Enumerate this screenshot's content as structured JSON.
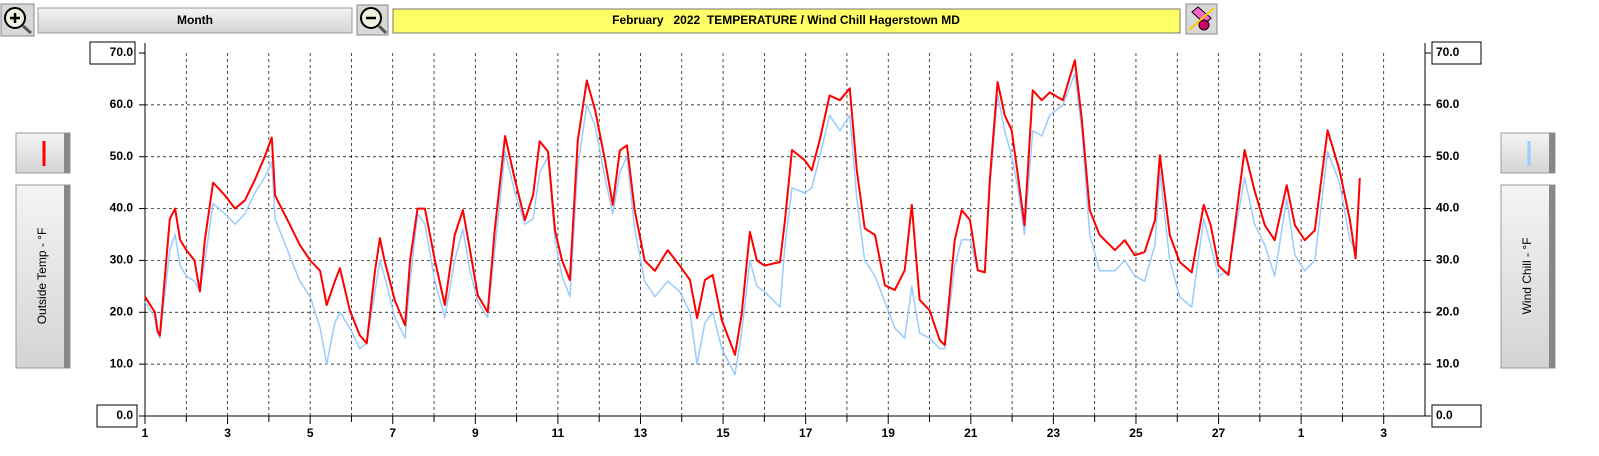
{
  "toolbar": {
    "period_button": "Month"
  },
  "chart_data": {
    "type": "line",
    "title": "February   2022  TEMPERATURE / Wind Chill Hagerstown MD",
    "y_label": "Outside Temp - °F",
    "y2_label": "Wind Chill - °F",
    "x": [
      1.0,
      1.24,
      1.3,
      1.36,
      1.6,
      1.73,
      1.85,
      2.0,
      2.2,
      2.33,
      2.45,
      2.65,
      2.94,
      3.18,
      3.42,
      3.66,
      3.9,
      4.07,
      4.15,
      4.5,
      4.75,
      5.0,
      5.24,
      5.4,
      5.6,
      5.72,
      5.96,
      6.2,
      6.37,
      6.57,
      6.69,
      6.8,
      7.05,
      7.3,
      7.42,
      7.6,
      7.78,
      8.02,
      8.26,
      8.5,
      8.7,
      8.87,
      9.06,
      9.3,
      9.47,
      9.72,
      9.96,
      10.2,
      10.4,
      10.56,
      10.76,
      10.93,
      11.1,
      11.29,
      11.48,
      11.7,
      11.9,
      12.14,
      12.33,
      12.5,
      12.67,
      12.86,
      13.1,
      13.35,
      13.66,
      13.95,
      14.2,
      14.37,
      14.56,
      14.75,
      14.97,
      15.29,
      15.45,
      15.65,
      15.82,
      16.0,
      16.38,
      16.5,
      16.67,
      16.98,
      17.15,
      17.34,
      17.58,
      17.83,
      18.07,
      18.24,
      18.43,
      18.68,
      18.92,
      19.16,
      19.4,
      19.57,
      19.76,
      20.0,
      20.25,
      20.37,
      20.61,
      20.78,
      20.98,
      21.17,
      21.34,
      21.46,
      21.65,
      21.82,
      21.99,
      22.14,
      22.3,
      22.5,
      22.72,
      22.91,
      23.23,
      23.52,
      23.69,
      23.88,
      24.12,
      24.49,
      24.73,
      24.97,
      25.21,
      25.46,
      25.58,
      25.82,
      26.06,
      26.35,
      26.64,
      26.81,
      27.0,
      27.24,
      27.63,
      27.87,
      28.12,
      28.36,
      28.65,
      28.85,
      29.09,
      29.33,
      29.64,
      29.93,
      30.18,
      30.32,
      30.42
    ],
    "series": [
      {
        "name": "Outside Temp - °F",
        "color": "#ff0000",
        "values": [
          23,
          20,
          16.5,
          15.5,
          38,
          40,
          34,
          32,
          30,
          24,
          34,
          45,
          42.5,
          40,
          41.6,
          45.5,
          50,
          53.7,
          42.5,
          37,
          33,
          30,
          28,
          21.4,
          26,
          28.5,
          20.4,
          15.6,
          14,
          28,
          34.3,
          30,
          22.3,
          17.5,
          30,
          40,
          40,
          30,
          21.4,
          34.9,
          39.7,
          32,
          23.3,
          20,
          35.8,
          54,
          45.5,
          37.8,
          42.6,
          53,
          51,
          35.8,
          30,
          26.2,
          53,
          64.7,
          59,
          49.3,
          40.7,
          51.2,
          52.2,
          39.7,
          30,
          28,
          32,
          29,
          26.2,
          18.9,
          26.2,
          27.2,
          18.5,
          11.8,
          19.5,
          35.5,
          30,
          29,
          29.7,
          37.8,
          51.3,
          49.3,
          47.4,
          53.2,
          61.8,
          60.9,
          63.2,
          47.4,
          36.2,
          34.9,
          25.2,
          24.3,
          28.1,
          40.7,
          22.4,
          20.4,
          14.6,
          13.7,
          33.9,
          39.7,
          37.8,
          28.1,
          27.7,
          45.5,
          64.4,
          58,
          55.1,
          46.4,
          36.8,
          62.8,
          60.9,
          62.4,
          60.9,
          68.6,
          57,
          39.7,
          34.9,
          32,
          33.9,
          31,
          31.6,
          37.8,
          50.3,
          34.9,
          29.7,
          27.7,
          40.7,
          36.8,
          29,
          27.2,
          51.3,
          43.5,
          36.8,
          33.9,
          44.5,
          36.8,
          33.9,
          35.8,
          55.1,
          47.4,
          37.8,
          30.4,
          45.9
        ]
      },
      {
        "name": "Wind Chill - °F",
        "color": "#99ccff",
        "axis": "y2",
        "values": [
          22,
          19,
          16,
          15,
          32,
          35,
          29,
          27,
          26,
          24,
          30,
          41,
          39,
          37,
          39,
          43,
          46,
          49,
          38,
          31,
          26,
          23,
          17,
          10,
          18,
          20,
          17,
          13,
          14,
          24,
          30,
          27,
          19,
          15,
          26,
          39,
          37,
          26,
          19,
          30,
          36,
          28,
          22,
          19,
          32,
          51,
          43,
          37,
          38,
          47,
          50,
          34,
          27,
          23,
          48,
          60,
          56,
          46,
          39,
          47,
          50,
          36,
          26,
          23,
          26,
          24,
          20,
          10,
          18,
          20,
          13,
          8,
          16,
          30,
          25,
          24,
          21,
          33,
          44,
          43,
          44,
          50,
          58,
          55,
          58,
          42,
          30,
          27,
          22,
          17,
          15,
          25,
          16,
          15,
          13,
          13,
          29,
          34,
          34,
          28,
          28,
          44,
          62,
          55,
          50,
          44,
          35,
          55,
          54,
          58,
          60,
          66,
          55,
          35,
          28,
          28,
          30,
          27,
          26,
          33,
          47,
          30,
          23,
          21,
          38,
          33,
          27,
          28,
          46,
          37,
          33,
          27,
          42,
          31,
          28,
          30,
          51,
          45,
          34,
          32,
          44
        ]
      }
    ],
    "xlim": [
      1,
      32
    ],
    "xticks": [
      1,
      3,
      5,
      7,
      9,
      11,
      13,
      15,
      17,
      19,
      21,
      23,
      25,
      27,
      {
        "value": 29,
        "label": "1"
      },
      {
        "value": 31,
        "label": "3"
      }
    ],
    "xminor": [
      2,
      4,
      6,
      8,
      10,
      12,
      14,
      16,
      18,
      20,
      22,
      24,
      26,
      28,
      30
    ],
    "ylim": [
      0,
      70
    ],
    "yticks": [
      {
        "value": 0,
        "label": "0.0"
      },
      {
        "value": 10,
        "label": "10.0"
      },
      {
        "value": 20,
        "label": "20.0"
      },
      {
        "value": 30,
        "label": "30.0"
      },
      {
        "value": 40,
        "label": "40.0"
      },
      {
        "value": 50,
        "label": "50.0"
      },
      {
        "value": 60,
        "label": "60.0"
      },
      {
        "value": 70,
        "label": "70.0"
      }
    ],
    "y2lim": [
      0,
      70
    ],
    "y2ticks": [
      {
        "value": 0,
        "label": "0.0"
      },
      {
        "value": 10,
        "label": "10.0"
      },
      {
        "value": 20,
        "label": "20.0"
      },
      {
        "value": 30,
        "label": "30.0"
      },
      {
        "value": 40,
        "label": "40.0"
      },
      {
        "value": 50,
        "label": "50.0"
      },
      {
        "value": 60,
        "label": "60.0"
      },
      {
        "value": 70,
        "label": "70.0"
      }
    ],
    "grid": true
  }
}
